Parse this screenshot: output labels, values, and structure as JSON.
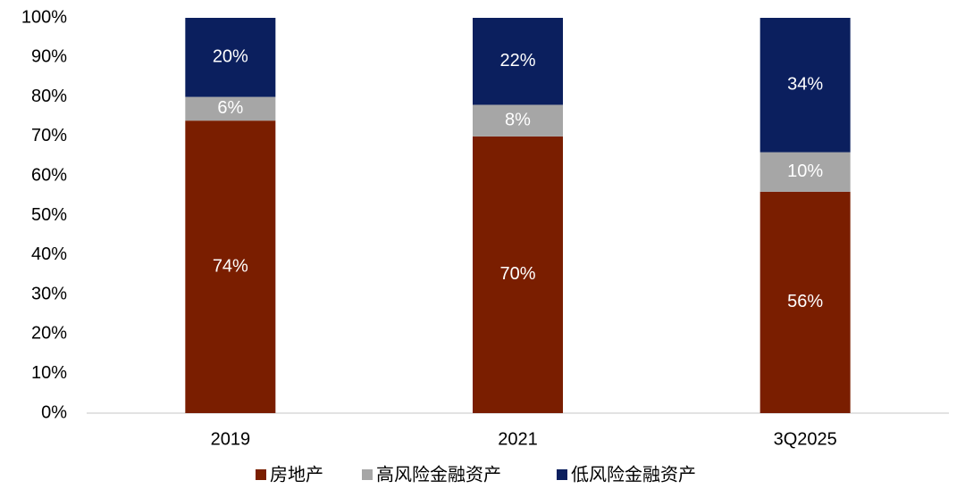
{
  "chart_data": {
    "type": "stacked_bar",
    "categories": [
      "2019",
      "2021",
      "3Q2025"
    ],
    "series": [
      {
        "name": "房地产",
        "color": "#7a1e00",
        "values": [
          74,
          70,
          56
        ],
        "value_labels": [
          "74%",
          "70%",
          "56%"
        ]
      },
      {
        "name": "高风险金融资产",
        "color": "#a6a6a6",
        "values": [
          6,
          8,
          10
        ],
        "value_labels": [
          "6%",
          "8%",
          "10%"
        ]
      },
      {
        "name": "低风险金融资产",
        "color": "#0b1f5e",
        "values": [
          20,
          22,
          34
        ],
        "value_labels": [
          "20%",
          "22%",
          "34%"
        ]
      }
    ],
    "ylim": [
      0,
      100
    ],
    "yticks": [
      {
        "value": 0,
        "label": "0%"
      },
      {
        "value": 10,
        "label": "10%"
      },
      {
        "value": 20,
        "label": "20%"
      },
      {
        "value": 30,
        "label": "30%"
      },
      {
        "value": 40,
        "label": "40%"
      },
      {
        "value": 50,
        "label": "50%"
      },
      {
        "value": 60,
        "label": "60%"
      },
      {
        "value": 70,
        "label": "70%"
      },
      {
        "value": 80,
        "label": "80%"
      },
      {
        "value": 90,
        "label": "90%"
      },
      {
        "value": 100,
        "label": "100%"
      }
    ],
    "grid": false,
    "legend": "bottom"
  }
}
